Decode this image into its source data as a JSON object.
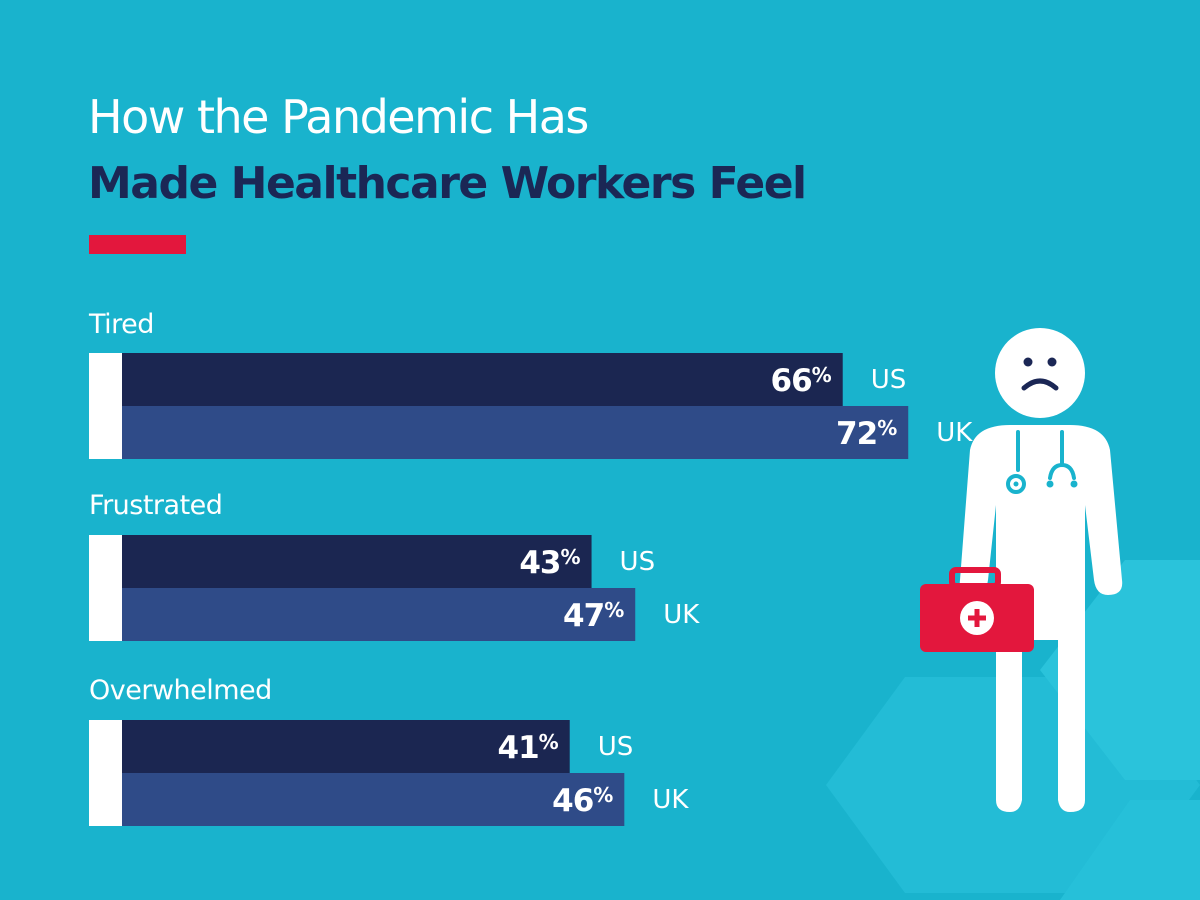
{
  "header": {
    "title_line1": "How the Pandemic Has",
    "title_line2": "Made Healthcare Workers Feel"
  },
  "colors": {
    "background": "#19b3cd",
    "title_dark": "#1b2755",
    "accent": "#e3173d",
    "us_bar": "#1b2651",
    "uk_bar": "#2f4b88",
    "cap": "#ffffff",
    "hexagon": "#2cc4dc"
  },
  "illustration": {
    "name": "sad-doctor-with-first-aid-kit",
    "kit_icon": "medical-cross-icon"
  },
  "chart_data": {
    "type": "bar",
    "orientation": "horizontal",
    "title": "How the Pandemic Has Made Healthcare Workers Feel",
    "categories": [
      "Tired",
      "Frustrated",
      "Overwhelmed"
    ],
    "series": [
      {
        "name": "US",
        "values": [
          66,
          43,
          41
        ]
      },
      {
        "name": "UK",
        "values": [
          72,
          47,
          46
        ]
      }
    ],
    "value_suffix": "%",
    "xlim": [
      0,
      100
    ],
    "grid": false,
    "legend": "inline-after-bars"
  }
}
